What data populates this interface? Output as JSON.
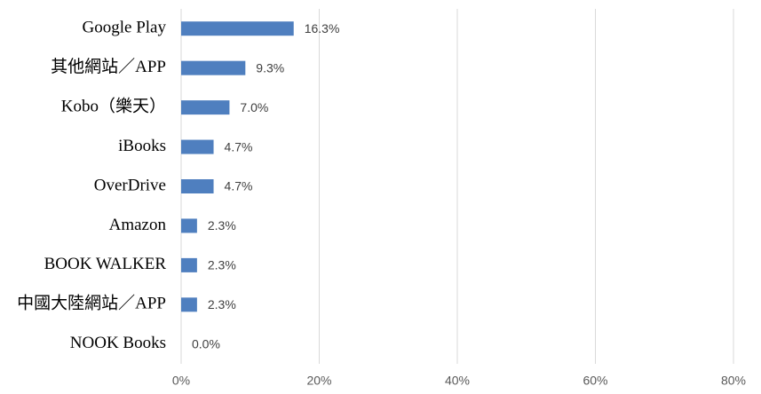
{
  "chart_data": {
    "type": "barh",
    "categories": [
      "Google Play",
      "其他網站／APP",
      "Kobo（樂天）",
      "iBooks",
      "OverDrive",
      "Amazon",
      "BOOK WALKER",
      "中國大陸網站／APP",
      "NOOK Books"
    ],
    "values": [
      16.3,
      9.3,
      7.0,
      4.7,
      4.7,
      2.3,
      2.3,
      2.3,
      0.0
    ],
    "value_labels": [
      "16.3%",
      "9.3%",
      "7.0%",
      "4.7%",
      "4.7%",
      "2.3%",
      "2.3%",
      "2.3%",
      "0.0%"
    ],
    "color": "#4f7fbf",
    "xlim": [
      0,
      80
    ],
    "xticks": [
      {
        "value": 0,
        "label": "0%"
      },
      {
        "value": 20,
        "label": "20%"
      },
      {
        "value": 40,
        "label": "40%"
      },
      {
        "value": 60,
        "label": "60%"
      },
      {
        "value": 80,
        "label": "80%"
      }
    ],
    "grid": true
  }
}
